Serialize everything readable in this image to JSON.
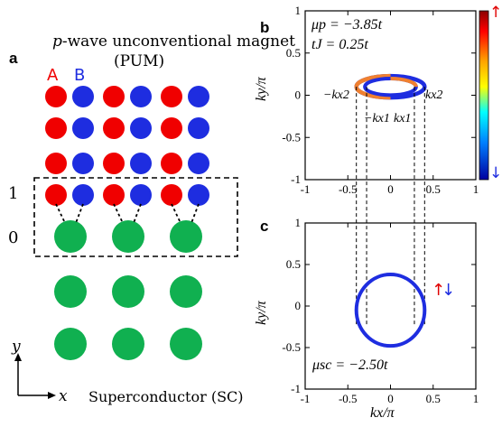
{
  "panel_a": {
    "letter": "a",
    "title_line1_italic": "p",
    "title_line1_rest": "-wave unconventional magnet",
    "title_line2": "(PUM)",
    "sublattice_a": "A",
    "sublattice_b": "B",
    "layer_1": "1",
    "layer_0": "0",
    "axis_y": "y",
    "axis_x": "x",
    "sc_label": "Superconductor (SC)",
    "colors": {
      "site_a": "#f00000",
      "site_b": "#1e2de0",
      "sc_site": "#10b050"
    }
  },
  "panel_b": {
    "letter": "b",
    "param_mu": "μp = −3.85t",
    "param_tj": "tJ = 0.25t",
    "label_neg_kx2": "−kx2",
    "label_neg_kx1": "−kx1",
    "label_kx1": "kx1",
    "label_kx2": "kx2",
    "ylabel": "ky/π",
    "colorbar_top_arrow": "↑",
    "colorbar_bottom_arrow": "↓"
  },
  "panel_c": {
    "letter": "c",
    "param_mu": "μsc = −2.50t",
    "spin_up": "↑",
    "spin_down": "↓",
    "ylabel": "ky/π",
    "xlabel": "kx/π"
  },
  "chart_data": [
    {
      "type": "line",
      "panel": "b",
      "xlim": [
        -1,
        1
      ],
      "ylim": [
        -1,
        1
      ],
      "xticks": [
        "-1",
        "-0.5",
        "0",
        "0.5",
        "1"
      ],
      "yticks": [
        "1",
        "0.5",
        "0",
        "-0.5",
        "-1"
      ],
      "series": [
        {
          "shape": "ellipse",
          "center": [
            0,
            0.1
          ],
          "rx": 0.4,
          "ry": 0.08,
          "color": "orange/red (spin up)"
        },
        {
          "shape": "ellipse",
          "center": [
            0,
            0.1
          ],
          "rx": 0.3,
          "ry": 0.07,
          "color": "blue (spin down)"
        }
      ],
      "kx1": 0.28,
      "kx2": 0.4
    },
    {
      "type": "line",
      "panel": "c",
      "xlim": [
        -1,
        1
      ],
      "ylim": [
        -1,
        1
      ],
      "xticks": [
        "-1",
        "-0.5",
        "0",
        "0.5",
        "1"
      ],
      "yticks": [
        "1",
        "0.5",
        "0",
        "-0.5",
        "-1"
      ],
      "series": [
        {
          "shape": "fermi-surface",
          "center": [
            0,
            -0.05
          ],
          "rx": 0.4,
          "ry": 0.43,
          "color": "#1e2de0"
        }
      ]
    }
  ]
}
